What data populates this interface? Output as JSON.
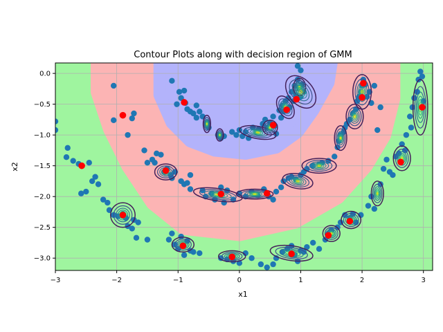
{
  "chart_data": {
    "type": "scatter",
    "title": "Contour Plots along with decision region of GMM",
    "xlabel": "x1",
    "ylabel": "x2",
    "xlim": [
      -3.0,
      3.15
    ],
    "ylim": [
      -3.2,
      0.17
    ],
    "xticks": [
      -3,
      -2,
      -1,
      0,
      1,
      2,
      3
    ],
    "yticks": [
      0.0,
      -0.5,
      -1.0,
      -1.5,
      -2.0,
      -2.5,
      -3.0
    ],
    "xtick_labels": [
      "−3",
      "−2",
      "−1",
      "0",
      "1",
      "2",
      "3"
    ],
    "ytick_labels": [
      "0.0",
      "−0.5",
      "−1.0",
      "−1.5",
      "−2.0",
      "−2.5",
      "−3.0"
    ],
    "grid": true,
    "colors": {
      "region_outer": "#9ff59f",
      "region_middle": "#fcb4b4",
      "region_inner": "#b3b3fb",
      "points": "#1f77b4",
      "means": "#ff0000",
      "contour_outer": "#44205a",
      "contour_inner": "#2a8a8a",
      "contour_core": "#d4e21a"
    },
    "points": [
      [
        -3.0,
        -0.78
      ],
      [
        -3.0,
        -0.92
      ],
      [
        -2.8,
        -1.21
      ],
      [
        -2.82,
        -1.36
      ],
      [
        -2.71,
        -1.42
      ],
      [
        -2.62,
        -1.47
      ],
      [
        -2.58,
        -1.95
      ],
      [
        -2.5,
        -1.92
      ],
      [
        -2.45,
        -1.45
      ],
      [
        -2.4,
        -1.75
      ],
      [
        -2.35,
        -1.68
      ],
      [
        -2.3,
        -1.8
      ],
      [
        -2.22,
        -2.05
      ],
      [
        -2.15,
        -2.1
      ],
      [
        -2.12,
        -2.22
      ],
      [
        -2.05,
        -2.3
      ],
      [
        -1.98,
        -2.32
      ],
      [
        -1.9,
        -2.28
      ],
      [
        -1.85,
        -2.35
      ],
      [
        -1.82,
        -2.48
      ],
      [
        -1.75,
        -2.52
      ],
      [
        -1.72,
        -2.38
      ],
      [
        -1.65,
        -2.42
      ],
      [
        -1.68,
        -2.67
      ],
      [
        -1.5,
        -2.7
      ],
      [
        -2.05,
        -0.2
      ],
      [
        -2.05,
        -0.76
      ],
      [
        -1.82,
        -1.0
      ],
      [
        -1.75,
        -0.73
      ],
      [
        -1.72,
        -0.65
      ],
      [
        -1.55,
        -1.25
      ],
      [
        -1.5,
        -1.45
      ],
      [
        -1.42,
        -1.4
      ],
      [
        -1.38,
        -1.45
      ],
      [
        -1.35,
        -1.3
      ],
      [
        -1.28,
        -1.32
      ],
      [
        -1.22,
        -1.6
      ],
      [
        -1.18,
        -1.55
      ],
      [
        -1.12,
        -1.65
      ],
      [
        -1.1,
        -1.7
      ],
      [
        -1.05,
        -1.6
      ],
      [
        -0.95,
        -1.75
      ],
      [
        -0.9,
        -1.8
      ],
      [
        -0.85,
        -1.78
      ],
      [
        -0.8,
        -1.88
      ],
      [
        -1.1,
        -0.12
      ],
      [
        -1.02,
        -0.5
      ],
      [
        -0.98,
        -0.3
      ],
      [
        -0.95,
        -0.4
      ],
      [
        -0.9,
        -0.28
      ],
      [
        -0.88,
        -0.48
      ],
      [
        -0.85,
        -0.58
      ],
      [
        -0.8,
        -0.62
      ],
      [
        -0.75,
        -0.65
      ],
      [
        -0.7,
        -0.72
      ],
      [
        -0.65,
        -0.62
      ],
      [
        -0.6,
        -0.7
      ],
      [
        -0.7,
        -0.52
      ],
      [
        -0.52,
        -0.8
      ],
      [
        -0.5,
        -0.88
      ],
      [
        -0.35,
        -1.0
      ],
      [
        -0.3,
        -1.05
      ],
      [
        -0.25,
        -1.02
      ],
      [
        -0.12,
        -0.95
      ],
      [
        -0.05,
        -1.0
      ],
      [
        0.0,
        -0.92
      ],
      [
        0.05,
        -1.02
      ],
      [
        0.1,
        -0.95
      ],
      [
        0.15,
        -1.05
      ],
      [
        0.22,
        -0.88
      ],
      [
        0.28,
        -0.95
      ],
      [
        0.32,
        -0.9
      ],
      [
        0.38,
        -0.82
      ],
      [
        0.42,
        -0.75
      ],
      [
        0.45,
        -0.88
      ],
      [
        0.5,
        -0.8
      ],
      [
        0.55,
        -0.7
      ],
      [
        0.58,
        -0.85
      ],
      [
        0.6,
        -0.98
      ],
      [
        0.65,
        -0.6
      ],
      [
        0.68,
        -0.72
      ],
      [
        0.7,
        -0.52
      ],
      [
        0.72,
        -0.62
      ],
      [
        0.75,
        -0.45
      ],
      [
        0.78,
        -0.58
      ],
      [
        0.8,
        -0.4
      ],
      [
        0.82,
        -0.55
      ],
      [
        0.85,
        -0.3
      ],
      [
        0.88,
        -0.45
      ],
      [
        0.9,
        -0.2
      ],
      [
        0.92,
        -0.35
      ],
      [
        0.95,
        -0.1
      ],
      [
        0.97,
        -0.25
      ],
      [
        1.0,
        0.05
      ],
      [
        1.0,
        -0.38
      ],
      [
        1.02,
        -0.18
      ],
      [
        1.05,
        -0.3
      ],
      [
        0.95,
        0.12
      ],
      [
        -0.8,
        -1.65
      ],
      [
        -0.6,
        -1.9
      ],
      [
        -0.55,
        -2.0
      ],
      [
        -0.45,
        -1.95
      ],
      [
        -0.4,
        -2.05
      ],
      [
        -0.3,
        -1.85
      ],
      [
        -0.25,
        -2.1
      ],
      [
        -0.2,
        -1.9
      ],
      [
        -0.1,
        -2.05
      ],
      [
        0.0,
        -1.95
      ],
      [
        0.1,
        -2.0
      ],
      [
        0.2,
        -1.92
      ],
      [
        0.3,
        -1.98
      ],
      [
        0.4,
        -1.88
      ],
      [
        0.48,
        -2.0
      ],
      [
        0.55,
        -2.05
      ],
      [
        0.6,
        -1.92
      ],
      [
        0.68,
        -1.85
      ],
      [
        0.72,
        -1.75
      ],
      [
        0.8,
        -1.7
      ],
      [
        0.85,
        -1.68
      ],
      [
        0.92,
        -1.72
      ],
      [
        1.0,
        -1.65
      ],
      [
        1.05,
        -1.6
      ],
      [
        1.1,
        -1.55
      ],
      [
        1.2,
        -1.5
      ],
      [
        1.3,
        -1.48
      ],
      [
        1.35,
        -1.45
      ],
      [
        1.45,
        -1.42
      ],
      [
        1.55,
        -1.35
      ],
      [
        1.6,
        -1.2
      ],
      [
        1.62,
        -1.1
      ],
      [
        1.65,
        -1.0
      ],
      [
        1.7,
        -0.95
      ],
      [
        1.72,
        -0.88
      ],
      [
        1.75,
        -0.82
      ],
      [
        1.8,
        -0.75
      ],
      [
        1.85,
        -0.65
      ],
      [
        1.9,
        -0.58
      ],
      [
        1.92,
        -0.45
      ],
      [
        1.95,
        -0.38
      ],
      [
        1.98,
        -0.3
      ],
      [
        2.0,
        -0.2
      ],
      [
        2.02,
        -0.1
      ],
      [
        2.05,
        -0.18
      ],
      [
        2.08,
        -0.38
      ],
      [
        2.12,
        -0.3
      ],
      [
        2.15,
        -0.48
      ],
      [
        2.2,
        -0.2
      ],
      [
        2.25,
        -0.92
      ],
      [
        2.3,
        -0.55
      ],
      [
        2.35,
        -1.55
      ],
      [
        2.4,
        -1.4
      ],
      [
        2.45,
        -1.6
      ],
      [
        2.5,
        -1.65
      ],
      [
        2.55,
        -1.35
      ],
      [
        2.6,
        -1.3
      ],
      [
        2.65,
        -1.15
      ],
      [
        2.7,
        -1.25
      ],
      [
        2.72,
        -1.0
      ],
      [
        2.78,
        -0.7
      ],
      [
        2.8,
        -0.88
      ],
      [
        2.82,
        -0.55
      ],
      [
        2.85,
        -0.4
      ],
      [
        2.9,
        -0.3
      ],
      [
        2.92,
        -0.1
      ],
      [
        2.95,
        0.03
      ],
      [
        2.98,
        -0.05
      ],
      [
        3.0,
        -0.45
      ],
      [
        -1.15,
        -2.7
      ],
      [
        -1.1,
        -2.6
      ],
      [
        -1.05,
        -2.78
      ],
      [
        -1.0,
        -2.85
      ],
      [
        -0.95,
        -2.65
      ],
      [
        -0.9,
        -2.95
      ],
      [
        -0.85,
        -2.72
      ],
      [
        -0.8,
        -2.88
      ],
      [
        -0.75,
        -2.9
      ],
      [
        -0.65,
        -2.92
      ],
      [
        -0.3,
        -3.0
      ],
      [
        -0.2,
        -3.02
      ],
      [
        -0.1,
        -3.05
      ],
      [
        0.0,
        -3.08
      ],
      [
        0.1,
        -2.92
      ],
      [
        0.2,
        -3.0
      ],
      [
        0.35,
        -3.1
      ],
      [
        0.45,
        -3.15
      ],
      [
        0.55,
        -3.1
      ],
      [
        0.6,
        -3.0
      ],
      [
        0.7,
        -2.9
      ],
      [
        0.78,
        -2.85
      ],
      [
        0.85,
        -2.8
      ],
      [
        0.9,
        -2.95
      ],
      [
        0.95,
        -3.05
      ],
      [
        1.0,
        -2.88
      ],
      [
        1.05,
        -2.9
      ],
      [
        1.1,
        -2.82
      ],
      [
        1.2,
        -2.75
      ],
      [
        1.3,
        -2.85
      ],
      [
        1.4,
        -2.7
      ],
      [
        1.45,
        -2.6
      ],
      [
        1.5,
        -2.55
      ],
      [
        1.6,
        -2.5
      ],
      [
        1.65,
        -2.42
      ],
      [
        1.72,
        -2.3
      ],
      [
        1.8,
        -2.35
      ],
      [
        1.85,
        -2.28
      ],
      [
        1.9,
        -2.42
      ],
      [
        1.98,
        -2.3
      ],
      [
        2.1,
        -2.15
      ],
      [
        2.15,
        -2.0
      ],
      [
        2.2,
        -2.2
      ],
      [
        2.3,
        -1.8
      ]
    ],
    "means": [
      [
        -2.57,
        -1.5
      ],
      [
        -1.9,
        -0.68
      ],
      [
        -1.9,
        -2.3
      ],
      [
        -1.2,
        -1.58
      ],
      [
        -0.9,
        -0.47
      ],
      [
        -0.92,
        -2.8
      ],
      [
        -0.3,
        -1.96
      ],
      [
        -0.12,
        -2.98
      ],
      [
        0.45,
        -1.95
      ],
      [
        0.55,
        -0.84
      ],
      [
        0.77,
        -0.59
      ],
      [
        0.93,
        -0.42
      ],
      [
        0.85,
        -2.93
      ],
      [
        1.45,
        -2.63
      ],
      [
        1.8,
        -2.4
      ],
      [
        2.0,
        -0.39
      ],
      [
        2.02,
        -0.16
      ],
      [
        2.63,
        -1.44
      ],
      [
        2.98,
        -0.55
      ]
    ],
    "components": [
      {
        "mu": [
          -0.53,
          -0.82
        ],
        "sx": 0.06,
        "sy": 0.14,
        "rot": 0
      },
      {
        "mu": [
          -0.32,
          -1.0
        ],
        "sx": 0.06,
        "sy": 0.1,
        "rot": 0
      },
      {
        "mu": [
          0.3,
          -0.96
        ],
        "sx": 0.3,
        "sy": 0.1,
        "rot": 10
      },
      {
        "mu": [
          0.5,
          -0.88
        ],
        "sx": 0.12,
        "sy": 0.12,
        "rot": 0
      },
      {
        "mu": [
          0.75,
          -0.55
        ],
        "sx": 0.12,
        "sy": 0.2,
        "rot": -30
      },
      {
        "mu": [
          0.98,
          -0.22
        ],
        "sx": 0.1,
        "sy": 0.14,
        "rot": 0
      },
      {
        "mu": [
          1.0,
          -0.3
        ],
        "sx": 0.2,
        "sy": 0.3,
        "rot": -40
      },
      {
        "mu": [
          1.65,
          -1.05
        ],
        "sx": 0.1,
        "sy": 0.2,
        "rot": 0
      },
      {
        "mu": [
          1.88,
          -0.7
        ],
        "sx": 0.14,
        "sy": 0.2,
        "rot": 0
      },
      {
        "mu": [
          2.0,
          -0.3
        ],
        "sx": 0.15,
        "sy": 0.28,
        "rot": 0
      },
      {
        "mu": [
          1.3,
          -1.5
        ],
        "sx": 0.28,
        "sy": 0.12,
        "rot": 0
      },
      {
        "mu": [
          0.95,
          -1.75
        ],
        "sx": 0.25,
        "sy": 0.12,
        "rot": 10
      },
      {
        "mu": [
          -0.35,
          -1.97
        ],
        "sx": 0.4,
        "sy": 0.1,
        "rot": 8
      },
      {
        "mu": [
          0.25,
          -1.96
        ],
        "sx": 0.3,
        "sy": 0.08,
        "rot": 0
      },
      {
        "mu": [
          2.25,
          -1.95
        ],
        "sx": 0.1,
        "sy": 0.2,
        "rot": 0
      },
      {
        "mu": [
          2.65,
          -1.38
        ],
        "sx": 0.14,
        "sy": 0.2,
        "rot": 0
      },
      {
        "mu": [
          2.95,
          -0.55
        ],
        "sx": 0.12,
        "sy": 0.45,
        "rot": 0
      },
      {
        "mu": [
          -1.2,
          -1.6
        ],
        "sx": 0.18,
        "sy": 0.13,
        "rot": 0
      },
      {
        "mu": [
          -1.9,
          -2.3
        ],
        "sx": 0.2,
        "sy": 0.2,
        "rot": 0
      },
      {
        "mu": [
          -0.92,
          -2.78
        ],
        "sx": 0.18,
        "sy": 0.12,
        "rot": 0
      },
      {
        "mu": [
          -0.12,
          -2.97
        ],
        "sx": 0.22,
        "sy": 0.09,
        "rot": 0
      },
      {
        "mu": [
          0.85,
          -2.92
        ],
        "sx": 0.35,
        "sy": 0.12,
        "rot": 8
      },
      {
        "mu": [
          1.5,
          -2.6
        ],
        "sx": 0.14,
        "sy": 0.13,
        "rot": 0
      },
      {
        "mu": [
          1.82,
          -2.38
        ],
        "sx": 0.16,
        "sy": 0.14,
        "rot": 0
      }
    ]
  }
}
